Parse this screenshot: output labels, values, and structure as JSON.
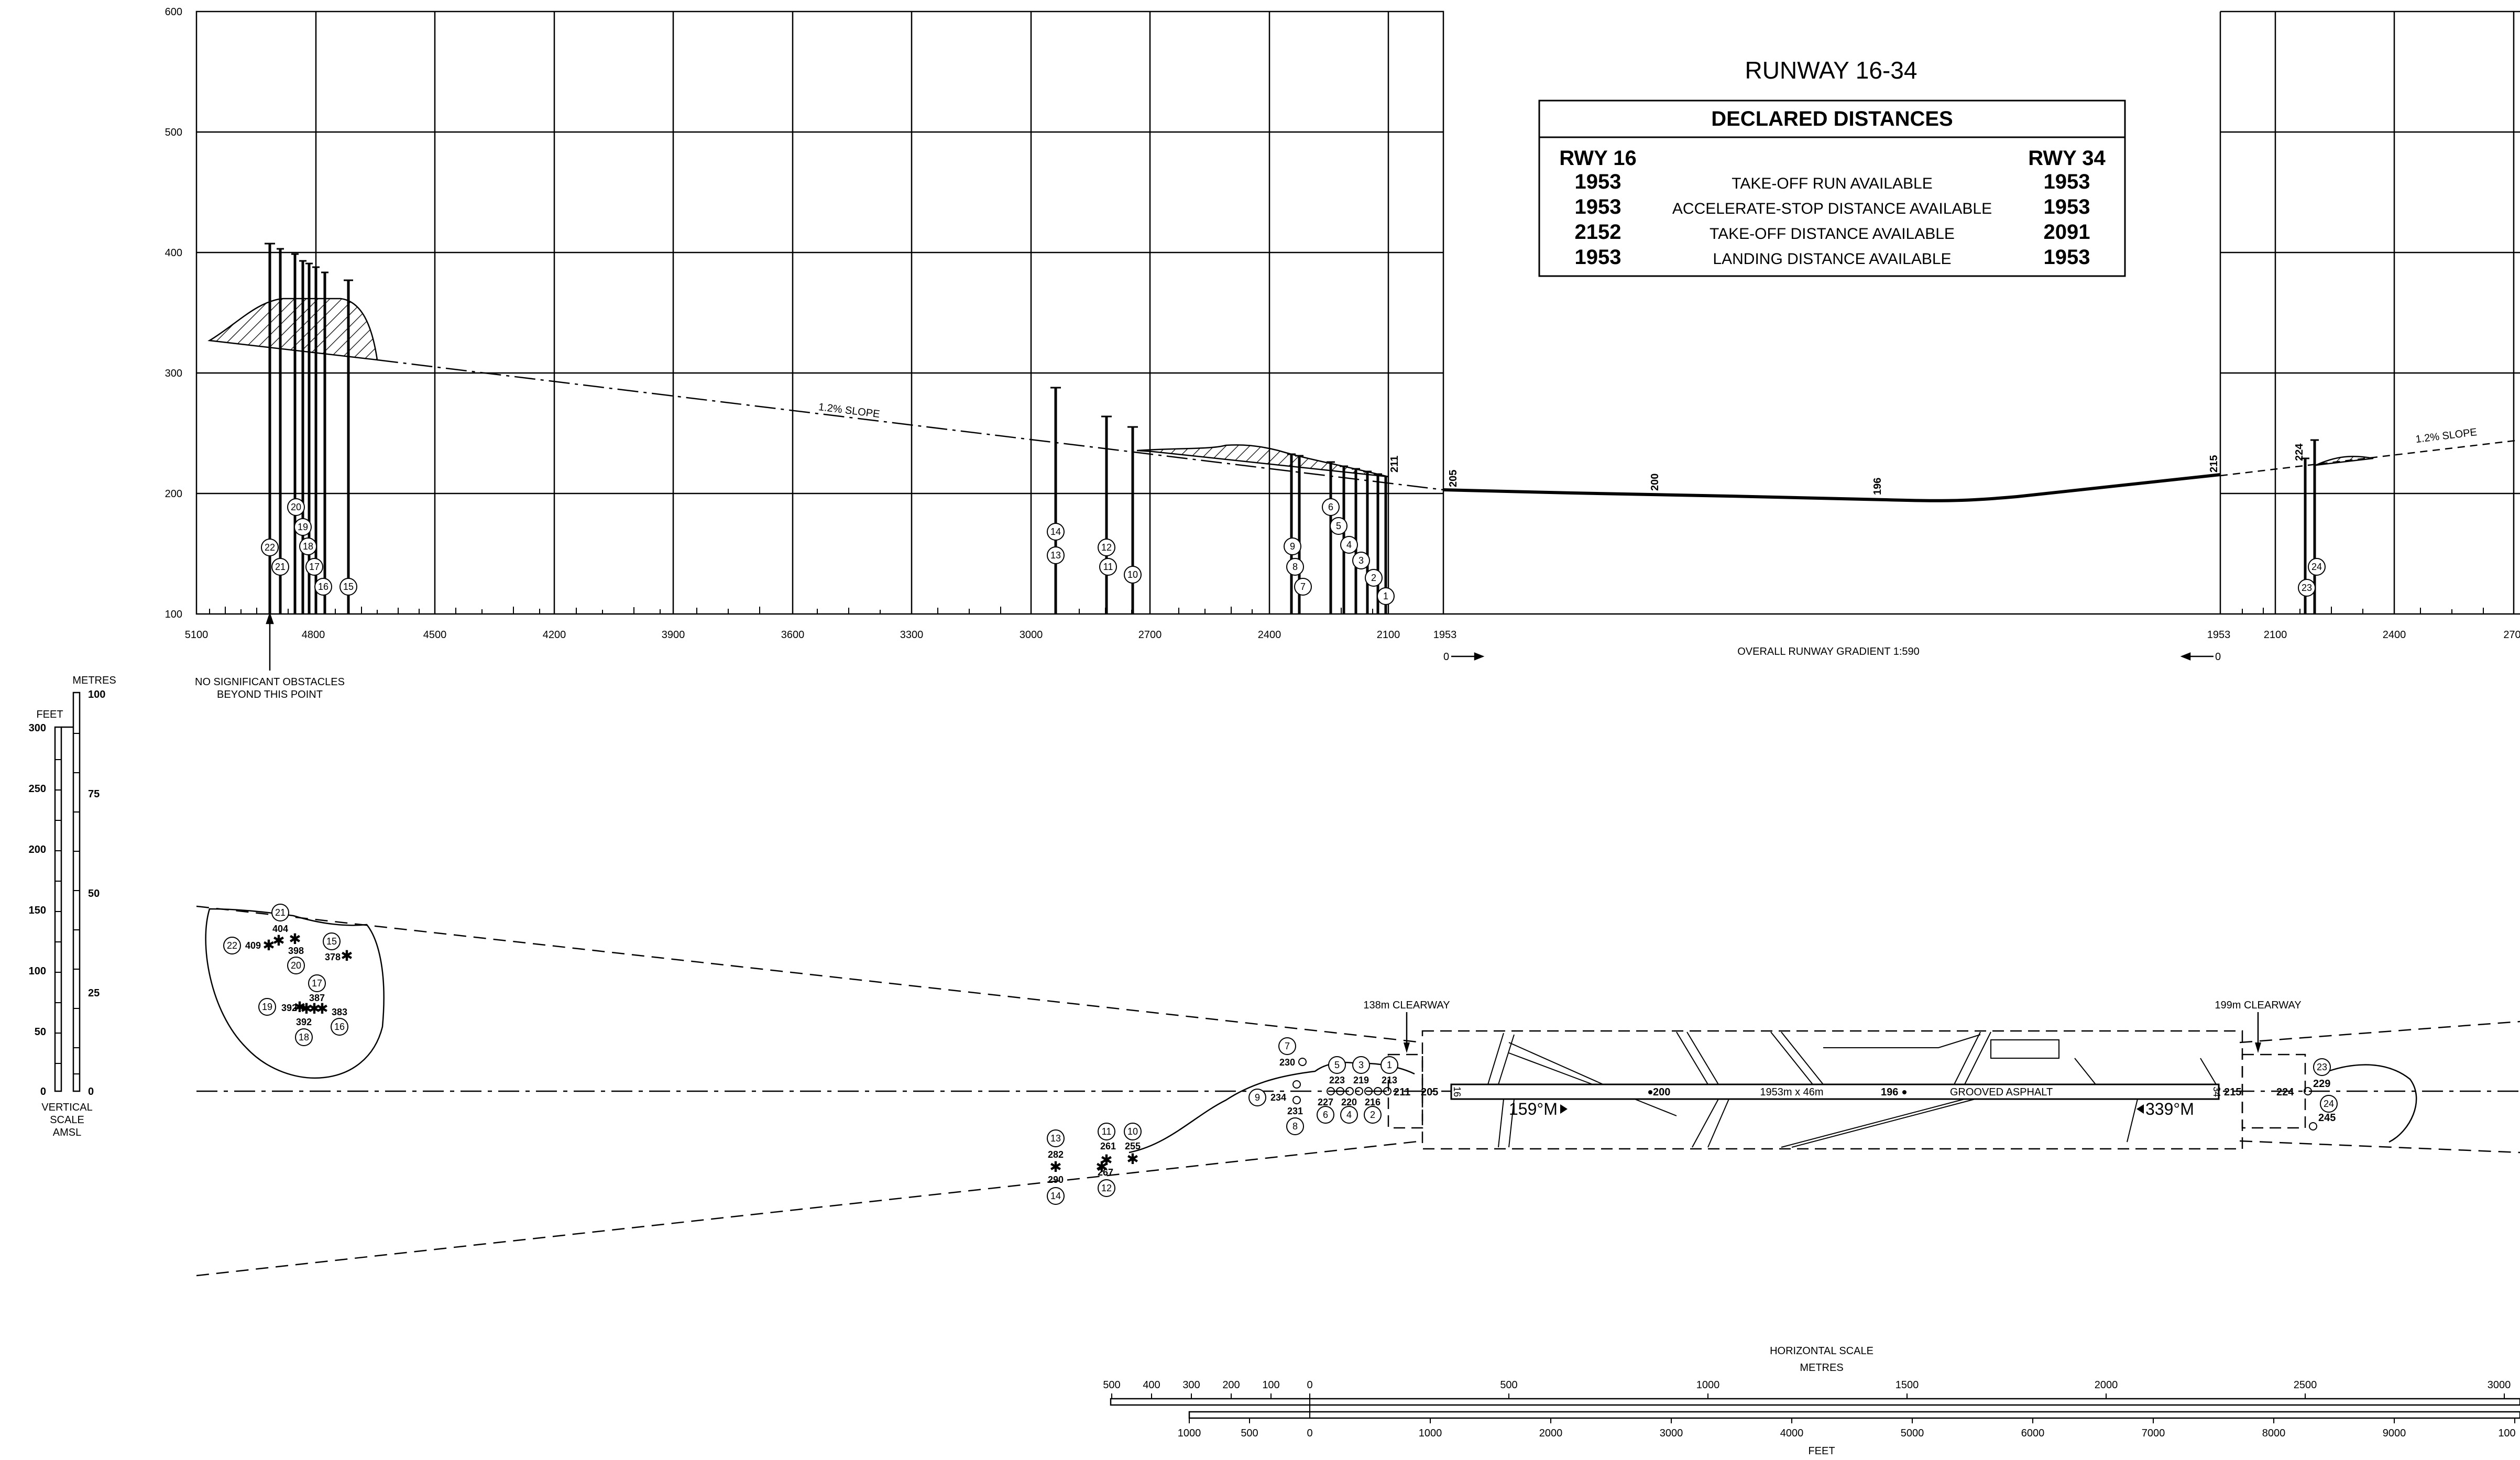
{
  "title": "RUNWAY 16-34",
  "declared": {
    "heading": "DECLARED DISTANCES",
    "rwy16": "RWY 16",
    "rwy34": "RWY 34",
    "rows": [
      {
        "v16": "1953",
        "label": "TAKE-OFF RUN AVAILABLE",
        "v34": "1953"
      },
      {
        "v16": "1953",
        "label": "ACCELERATE-STOP DISTANCE AVAILABLE",
        "v34": "1953"
      },
      {
        "v16": "2152",
        "label": "TAKE-OFF DISTANCE AVAILABLE",
        "v34": "2091"
      },
      {
        "v16": "1953",
        "label": "LANDING DISTANCE AVAILABLE",
        "v34": "1953"
      }
    ]
  },
  "profile": {
    "y_ticks": [
      "600",
      "500",
      "400",
      "300",
      "200",
      "100"
    ],
    "x_ticks_left": [
      "5100",
      "4800",
      "4500",
      "4200",
      "3900",
      "3600",
      "3300",
      "3000",
      "2700",
      "2400",
      "2100",
      "1953"
    ],
    "x_ticks_right": [
      "1953",
      "2100",
      "2400",
      "270"
    ],
    "slope_label_left": "1.2% SLOPE",
    "slope_label_right": "1.2% SLOPE",
    "runway_elev_labels": [
      "205",
      "200",
      "196",
      "215"
    ],
    "end_labels": [
      "211",
      "224"
    ],
    "gradient_label": "OVERALL RUNWAY GRADIENT 1:590",
    "zero_left": "0",
    "zero_right": "0",
    "no_obstacles_line1": "NO SIGNIFICANT OBSTACLES",
    "no_obstacles_line2": "BEYOND THIS POINT",
    "obstacle_markers_left": [
      "22",
      "21",
      "20",
      "19",
      "18",
      "17",
      "16",
      "15",
      "14",
      "13",
      "12",
      "11",
      "10",
      "9",
      "8",
      "7",
      "6",
      "5",
      "4",
      "3",
      "2",
      "1"
    ],
    "obstacle_markers_right": [
      "24",
      "23"
    ]
  },
  "vertical_scale": {
    "metres_label": "METRES",
    "feet_label": "FEET",
    "metre_ticks": [
      "100",
      "75",
      "50",
      "25",
      "0"
    ],
    "feet_ticks": [
      "300",
      "250",
      "200",
      "150",
      "100",
      "50",
      "0"
    ],
    "caption1": "VERTICAL",
    "caption2": "SCALE",
    "caption3": "AMSL"
  },
  "plan": {
    "clearway_left": "138m CLEARWAY",
    "clearway_right": "199m CLEARWAY",
    "runway_dims": "1953m x 46m",
    "surface": "GROOVED ASPHALT",
    "hdg_16": "159°M",
    "hdg_34": "339°M",
    "thr_16": "16",
    "thr_34": "34",
    "elev_205": "205",
    "elev_200": "200",
    "elev_196": "196",
    "elev_215": "215",
    "elev_211": "211",
    "elev_224": "224",
    "elev_229": "229",
    "elev_245": "245",
    "cluster_far": [
      {
        "num": "21",
        "elev": "404"
      },
      {
        "num": "22",
        "elev": "409"
      },
      {
        "num": "20",
        "elev": "398"
      },
      {
        "num": "15",
        "elev": "378"
      },
      {
        "num": "17",
        "elev": "387"
      },
      {
        "num": "19",
        "elev": "392"
      },
      {
        "num": "18",
        "elev": "392"
      },
      {
        "num": "16",
        "elev": "383"
      }
    ],
    "cluster_mid": [
      {
        "num": "13",
        "elev": "282"
      },
      {
        "num": "14",
        "elev": "290"
      },
      {
        "num": "11",
        "elev": "261"
      },
      {
        "num": "12",
        "elev": "267"
      },
      {
        "num": "10",
        "elev": "255"
      }
    ],
    "cluster_near": [
      {
        "num": "7",
        "elev": "230"
      },
      {
        "num": "9",
        "elev": "234"
      },
      {
        "num": "8",
        "elev": "231"
      },
      {
        "num": "5",
        "elev": "223"
      },
      {
        "num": "3",
        "elev": "219"
      },
      {
        "num": "1",
        "elev": "213"
      },
      {
        "num": "6",
        "elev": "227"
      },
      {
        "num": "4",
        "elev": "220"
      },
      {
        "num": "2",
        "elev": "216"
      }
    ],
    "markers_right": [
      "23",
      "24"
    ]
  },
  "horizontal_scale": {
    "title": "HORIZONTAL SCALE",
    "metres": "METRES",
    "feet": "FEET",
    "metre_ticks": [
      "500",
      "400",
      "300",
      "200",
      "100",
      "0",
      "500",
      "1000",
      "1500",
      "2000",
      "2500",
      "3000"
    ],
    "feet_ticks": [
      "1000",
      "500",
      "0",
      "1000",
      "2000",
      "3000",
      "4000",
      "5000",
      "6000",
      "7000",
      "8000",
      "9000",
      "100"
    ]
  }
}
